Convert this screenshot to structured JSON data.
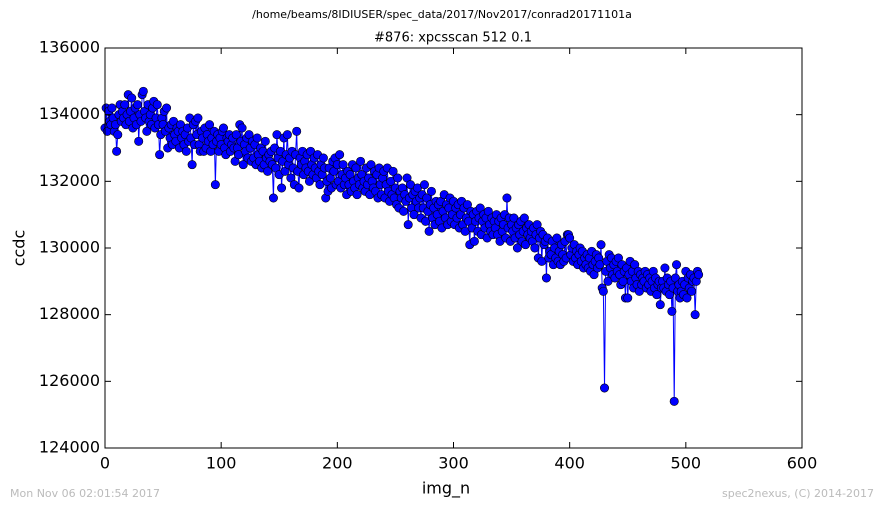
{
  "header": {
    "path": "/home/beams/8IDIUSER/spec_data/2017/Nov2017/conrad20171101a"
  },
  "footer": {
    "timestamp": "Mon Nov 06 02:01:54 2017",
    "credit": "spec2nexus, (C) 2014-2017"
  },
  "chart_data": {
    "type": "line",
    "title": "#876: xpcsscan 512 0.1",
    "x_label": "img_n",
    "y_label": "ccdc",
    "color": "#0000ff",
    "marker": true,
    "xlim": [
      0,
      600
    ],
    "xticks": [
      0,
      100,
      200,
      300,
      400,
      500,
      600
    ],
    "ylim": [
      124000,
      136000
    ],
    "yticks": [
      124000,
      126000,
      128000,
      130000,
      132000,
      134000,
      136000
    ],
    "values": [
      133600,
      134200,
      133500,
      134100,
      133800,
      133700,
      134200,
      133900,
      133500,
      133700,
      132900,
      133400,
      134000,
      134300,
      133800,
      134100,
      133900,
      134300,
      133700,
      134000,
      134600,
      133800,
      134100,
      134500,
      133600,
      133900,
      134200,
      133700,
      134300,
      133200,
      134000,
      133800,
      134600,
      134700,
      134100,
      133900,
      133500,
      134300,
      133800,
      134000,
      133700,
      134200,
      134400,
      133600,
      133900,
      134300,
      133700,
      132800,
      133400,
      133900,
      133700,
      134100,
      133500,
      134200,
      133000,
      133600,
      133300,
      133700,
      133100,
      133800,
      133400,
      133200,
      133600,
      133500,
      133000,
      133700,
      133300,
      133500,
      133100,
      133400,
      132900,
      133600,
      133200,
      133900,
      133300,
      132500,
      133700,
      133100,
      133800,
      133400,
      133900,
      133100,
      132900,
      133500,
      133300,
      132900,
      133600,
      133000,
      133400,
      133200,
      133700,
      132900,
      133300,
      133100,
      133500,
      131900,
      133200,
      133400,
      132900,
      133300,
      133100,
      133500,
      133600,
      133000,
      132800,
      133300,
      133200,
      133400,
      132900,
      133100,
      133300,
      133000,
      132600,
      133400,
      133000,
      132800,
      133700,
      133200,
      133600,
      132500,
      133100,
      132900,
      133300,
      132700,
      133400,
      133000,
      132600,
      133200,
      132700,
      133100,
      132500,
      133300,
      132800,
      132600,
      133000,
      132400,
      132900,
      132500,
      133200,
      132700,
      132300,
      132800,
      132600,
      132900,
      132500,
      131500,
      133000,
      132400,
      133400,
      132700,
      132200,
      132900,
      131800,
      132600,
      133300,
      132300,
      132800,
      133400,
      132500,
      132700,
      132100,
      132900,
      132400,
      131900,
      132800,
      133500,
      132300,
      131800,
      132700,
      132500,
      132900,
      132200,
      132600,
      132400,
      132800,
      132300,
      132000,
      132900,
      132500,
      132200,
      132700,
      132400,
      132100,
      132800,
      132300,
      131900,
      132500,
      132200,
      132700,
      132400,
      131500,
      132000,
      131700,
      132400,
      132100,
      131800,
      132600,
      132300,
      132700,
      131900,
      132500,
      132000,
      132800,
      131800,
      132200,
      132500,
      131900,
      132100,
      131600,
      132300,
      131900,
      132200,
      131700,
      132500,
      132000,
      131800,
      132400,
      131600,
      132100,
      131900,
      132600,
      132200,
      131800,
      132000,
      131700,
      132400,
      131900,
      132100,
      131600,
      132500,
      132000,
      131800,
      132300,
      131700,
      132200,
      131500,
      132400,
      131900,
      131600,
      132100,
      132300,
      131500,
      131900,
      132400,
      131700,
      131400,
      132000,
      131600,
      132300,
      131500,
      131800,
      131300,
      132100,
      131200,
      131700,
      131500,
      131800,
      131100,
      131600,
      131400,
      132100,
      130700,
      131500,
      131900,
      131200,
      131600,
      131000,
      131700,
      131400,
      131800,
      131200,
      131500,
      130900,
      131600,
      131200,
      131900,
      130800,
      131500,
      131100,
      130500,
      131300,
      131700,
      130900,
      131200,
      130700,
      131400,
      131000,
      131300,
      130800,
      131400,
      130600,
      131100,
      131600,
      130900,
      131300,
      130700,
      131200,
      131500,
      130800,
      131000,
      131400,
      130700,
      131200,
      130900,
      131300,
      130600,
      131000,
      131400,
      130700,
      131200,
      130500,
      130900,
      131300,
      130800,
      130100,
      131100,
      130600,
      131000,
      130200,
      130800,
      131100,
      130500,
      130900,
      131200,
      130400,
      130800,
      131000,
      130600,
      130900,
      130300,
      131100,
      130700,
      130500,
      130900,
      130400,
      130800,
      130600,
      131000,
      130400,
      130800,
      130200,
      130900,
      130500,
      130700,
      131000,
      130300,
      131500,
      130600,
      130900,
      130200,
      130700,
      130500,
      130900,
      130300,
      130600,
      130000,
      130700,
      130400,
      130800,
      130200,
      130500,
      130900,
      130100,
      130600,
      130400,
      130700,
      130300,
      130500,
      130200,
      130600,
      130000,
      130400,
      130700,
      129700,
      130300,
      130500,
      129600,
      130400,
      130100,
      130200,
      129100,
      130300,
      129700,
      129900,
      129800,
      130200,
      129500,
      130000,
      129700,
      130300,
      129600,
      129900,
      129500,
      130100,
      129800,
      129600,
      130200,
      129700,
      130400,
      130400,
      130300,
      129800,
      130000,
      129600,
      130100,
      129700,
      129900,
      129500,
      129800,
      130000,
      129600,
      129900,
      129400,
      129700,
      129500,
      129800,
      129400,
      129700,
      129300,
      129900,
      129500,
      129200,
      129600,
      129800,
      129400,
      129700,
      129500,
      130100,
      128800,
      128700,
      125800,
      129300,
      129600,
      129000,
      129800,
      129400,
      129700,
      129200,
      129500,
      129100,
      129600,
      129300,
      129700,
      129200,
      128900,
      129500,
      129000,
      129300,
      128500,
      129400,
      128500,
      129200,
      129600,
      129000,
      129300,
      128800,
      129500,
      129100,
      128900,
      129300,
      128700,
      129200,
      128900,
      129100,
      129000,
      129300,
      128800,
      129200,
      128900,
      129100,
      128700,
      129000,
      129300,
      128800,
      129100,
      128600,
      128900,
      129000,
      128300,
      128800,
      129000,
      128800,
      129400,
      128700,
      129100,
      128900,
      128600,
      129000,
      128100,
      128800,
      125400,
      129100,
      129500,
      128700,
      128900,
      128500,
      128700,
      129000,
      128600,
      128900,
      129300,
      128500,
      129100,
      128800,
      129200,
      128700,
      129000,
      129100,
      128000,
      129000,
      129300,
      129200
    ]
  }
}
